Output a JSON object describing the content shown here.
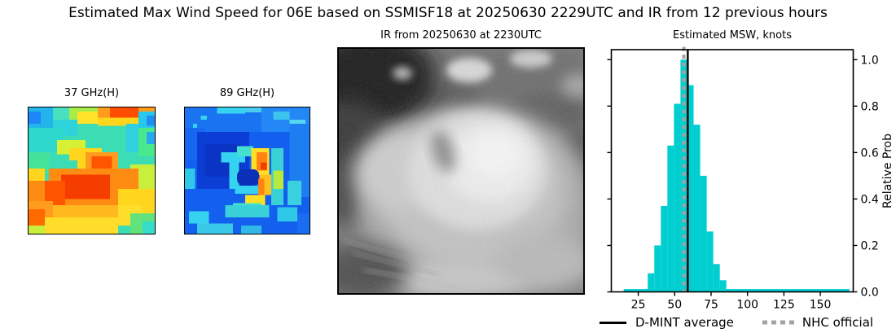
{
  "figure": {
    "title": "Estimated Max Wind Speed for 06E based on SSMISF18 at 20250630 2229UTC and IR from 12 previous hours"
  },
  "panels": {
    "mw37": {
      "title": "37 GHz(H)"
    },
    "mw89": {
      "title": "89 GHz(H)"
    },
    "ir": {
      "title": "IR from 20250630 at 2230UTC"
    }
  },
  "chart_data": {
    "type": "bar",
    "title": "Estimated MSW, knots",
    "ylabel": "Relative Prob",
    "xlabel": "",
    "xlim": [
      6.5,
      172.6
    ],
    "ylim": [
      0,
      1.043
    ],
    "xticks": [
      25,
      50,
      75,
      100,
      125,
      150
    ],
    "yticks": [
      "0.0",
      "0.2",
      "0.4",
      "0.6",
      "0.8",
      "1.0"
    ],
    "grid": false,
    "bar_color": "#00ced1",
    "bins": [
      {
        "from": 15,
        "to": 170,
        "p": 0.012
      },
      {
        "from": 31.5,
        "to": 36,
        "p": 0.08
      },
      {
        "from": 36,
        "to": 40.5,
        "p": 0.2
      },
      {
        "from": 40.5,
        "to": 45,
        "p": 0.37
      },
      {
        "from": 45,
        "to": 49.5,
        "p": 0.63
      },
      {
        "from": 49.5,
        "to": 54,
        "p": 0.81
      },
      {
        "from": 54,
        "to": 58.5,
        "p": 1.0
      },
      {
        "from": 58.5,
        "to": 63,
        "p": 0.89
      },
      {
        "from": 63,
        "to": 67.5,
        "p": 0.72
      },
      {
        "from": 67.5,
        "to": 72,
        "p": 0.5
      },
      {
        "from": 72,
        "to": 76.5,
        "p": 0.26
      },
      {
        "from": 76.5,
        "to": 81,
        "p": 0.12
      },
      {
        "from": 81,
        "to": 85.5,
        "p": 0.05
      }
    ],
    "lines": [
      {
        "label": "D-MINT average",
        "knots": 59,
        "color": "#000000",
        "width": 2.4,
        "dash": ""
      },
      {
        "label": "NHC official",
        "knots": 56.3,
        "color": "#a3a3a3",
        "width": 4,
        "dash": "5 4.6"
      }
    ],
    "legend": {
      "items": [
        {
          "label": "D-MINT average",
          "style": "solid black line"
        },
        {
          "label": "NHC official",
          "style": "dashed gray line"
        }
      ]
    }
  }
}
